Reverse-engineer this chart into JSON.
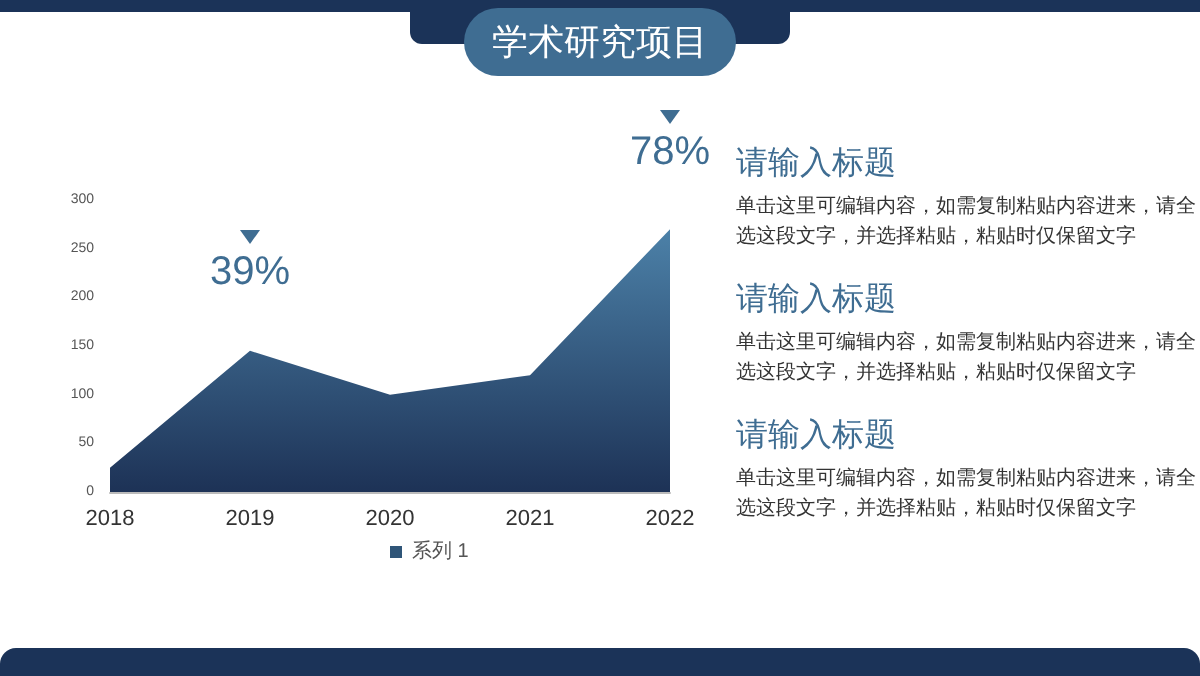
{
  "chart_data": {
    "type": "area",
    "title": "学术研究项目",
    "categories": [
      "2018",
      "2019",
      "2020",
      "2021",
      "2022"
    ],
    "series": [
      {
        "name": "系列 1",
        "color": "#2f5578",
        "values": [
          25,
          145,
          100,
          120,
          270
        ]
      }
    ],
    "ylim": [
      0,
      300
    ],
    "yticks": [
      0,
      50,
      100,
      150,
      200,
      250,
      300
    ],
    "grid": false,
    "legend": "bottom",
    "annotations": [
      {
        "text": "39%",
        "x": "2019",
        "y": 145
      },
      {
        "text": "78%",
        "x": "2022",
        "y": 270
      },
      "请输入标题",
      "单击这里可编辑内容，如需复制粘贴内容进来，请全选这段文字，并选择粘贴，粘贴时仅保留文字",
      "请输入标题",
      "单击这里可编辑内容，如需复制粘贴内容进来，请全选这段文字，并选择粘贴，粘贴时仅保留文字",
      "请输入标题",
      "单击这里可编辑内容，如需复制粘贴内容进来，请全选这段文字，并选择粘贴，粘贴时仅保留文字"
    ]
  }
}
